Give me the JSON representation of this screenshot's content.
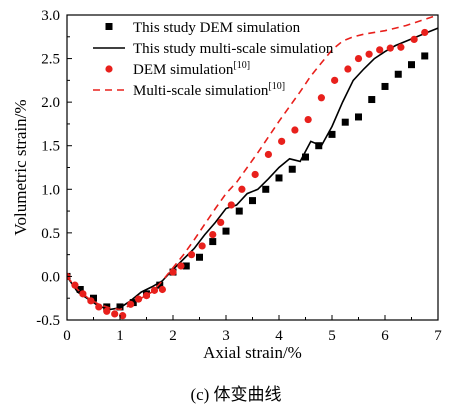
{
  "chart_data": {
    "type": "line",
    "xlabel": "Axial strain/%",
    "ylabel": "Volumetric strain/%",
    "xlim": [
      0,
      7
    ],
    "ylim": [
      -0.5,
      3.0
    ],
    "x_ticks": [
      "0",
      "1",
      "2",
      "3",
      "4",
      "5",
      "6",
      "7"
    ],
    "y_ticks": [
      "-0.5",
      "0.0",
      "0.5",
      "1.0",
      "1.5",
      "2.0",
      "2.5",
      "3.0"
    ],
    "grid": false,
    "legend_position": "top-right",
    "caption": "(c) 体变曲线",
    "series": [
      {
        "name": "This study DEM simulation",
        "ref": "",
        "style": "square-markers",
        "color": "#000000",
        "x": [
          0,
          0.25,
          0.5,
          0.75,
          1.0,
          1.25,
          1.5,
          1.75,
          2.0,
          2.25,
          2.5,
          2.75,
          3.0,
          3.25,
          3.5,
          3.75,
          4.0,
          4.25,
          4.5,
          4.75,
          5.0,
          5.25,
          5.5,
          5.75,
          6.0,
          6.25,
          6.5,
          6.75
        ],
        "y": [
          0.0,
          -0.15,
          -0.25,
          -0.35,
          -0.35,
          -0.3,
          -0.2,
          -0.1,
          0.05,
          0.12,
          0.22,
          0.4,
          0.52,
          0.75,
          0.87,
          1.0,
          1.13,
          1.23,
          1.37,
          1.5,
          1.63,
          1.77,
          1.83,
          2.03,
          2.18,
          2.32,
          2.43,
          2.53
        ]
      },
      {
        "name": "This study multi-scale simulation",
        "ref": "",
        "style": "solid-line",
        "color": "#000000",
        "x": [
          0,
          0.2,
          0.4,
          0.6,
          0.8,
          1.0,
          1.2,
          1.4,
          1.6,
          1.8,
          2.0,
          2.2,
          2.4,
          2.6,
          2.8,
          3.0,
          3.2,
          3.4,
          3.6,
          3.8,
          4.0,
          4.2,
          4.4,
          4.6,
          4.8,
          5.0,
          5.2,
          5.4,
          5.6,
          5.8,
          6.0,
          6.2,
          6.4,
          6.6,
          6.8,
          7.0
        ],
        "y": [
          0.0,
          -0.18,
          -0.26,
          -0.34,
          -0.38,
          -0.36,
          -0.28,
          -0.18,
          -0.12,
          -0.05,
          0.08,
          0.2,
          0.32,
          0.48,
          0.62,
          0.78,
          0.82,
          0.95,
          1.0,
          1.12,
          1.25,
          1.35,
          1.32,
          1.55,
          1.5,
          1.72,
          2.0,
          2.25,
          2.38,
          2.5,
          2.58,
          2.65,
          2.7,
          2.75,
          2.8,
          2.85
        ]
      },
      {
        "name": "DEM simulation",
        "ref": "[10]",
        "style": "circle-markers",
        "color": "#e8201c",
        "x": [
          0,
          0.15,
          0.3,
          0.45,
          0.6,
          0.75,
          0.9,
          1.05,
          1.2,
          1.35,
          1.5,
          1.65,
          1.8,
          2.0,
          2.15,
          2.35,
          2.55,
          2.75,
          2.9,
          3.1,
          3.3,
          3.55,
          3.8,
          4.05,
          4.3,
          4.55,
          4.8,
          5.05,
          5.3,
          5.5,
          5.7,
          5.9,
          6.1,
          6.3,
          6.55,
          6.75
        ],
        "y": [
          0.0,
          -0.1,
          -0.2,
          -0.28,
          -0.35,
          -0.4,
          -0.43,
          -0.45,
          -0.32,
          -0.26,
          -0.22,
          -0.16,
          -0.15,
          0.05,
          0.12,
          0.25,
          0.35,
          0.48,
          0.62,
          0.82,
          1.0,
          1.17,
          1.4,
          1.55,
          1.68,
          1.8,
          2.05,
          2.25,
          2.38,
          2.5,
          2.55,
          2.6,
          2.62,
          2.63,
          2.72,
          2.8
        ]
      },
      {
        "name": "Multi-scale simulation",
        "ref": "[10]",
        "style": "dashed-line",
        "color": "#e8201c",
        "x": [
          0,
          0.2,
          0.4,
          0.6,
          0.8,
          1.0,
          1.2,
          1.4,
          1.6,
          1.8,
          2.0,
          2.2,
          2.4,
          2.6,
          2.8,
          3.0,
          3.2,
          3.4,
          3.6,
          3.8,
          4.0,
          4.2,
          4.4,
          4.6,
          4.8,
          5.0,
          5.2,
          5.4,
          5.6,
          5.8,
          6.0,
          6.2,
          6.4,
          6.6,
          6.8,
          7.0
        ],
        "y": [
          0.0,
          -0.15,
          -0.25,
          -0.32,
          -0.36,
          -0.38,
          -0.33,
          -0.25,
          -0.18,
          -0.05,
          0.1,
          0.25,
          0.42,
          0.6,
          0.78,
          0.95,
          1.08,
          1.25,
          1.42,
          1.6,
          1.78,
          1.95,
          2.12,
          2.3,
          2.45,
          2.6,
          2.7,
          2.75,
          2.78,
          2.8,
          2.82,
          2.85,
          2.88,
          2.92,
          2.96,
          3.0
        ]
      }
    ]
  }
}
